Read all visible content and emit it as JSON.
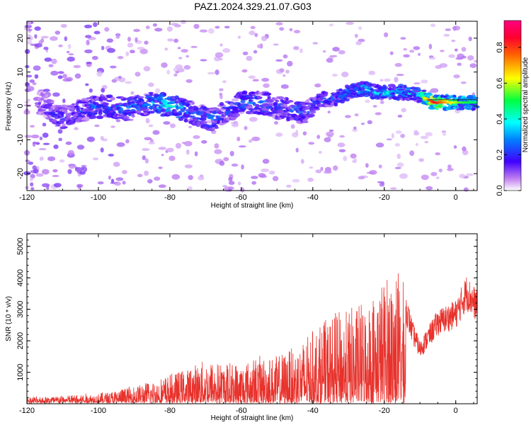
{
  "title": "PAZ1.2024.329.21.07.G03",
  "chart_data": [
    {
      "type": "heatmap",
      "xlabel": "Height of straight line (km)",
      "ylabel": "Frequency (Hz)",
      "xlim": [
        -120,
        6
      ],
      "ylim": [
        -25,
        25
      ],
      "xticks": [
        -120,
        -100,
        -80,
        -60,
        -40,
        -20,
        0
      ],
      "yticks": [
        -20,
        -10,
        0,
        10,
        20
      ],
      "colorbar": {
        "label": "Normalized spectral amplitude",
        "range": [
          0,
          0.95
        ],
        "ticks": [
          0.0,
          0.2,
          0.4,
          0.6,
          0.8
        ],
        "colormap": "rainbow (white-violet-blue-cyan-green-yellow-red-magenta)"
      },
      "ridge": {
        "x": [
          -116,
          -110,
          -104,
          -98,
          -92,
          -86,
          -80,
          -74,
          -68,
          -64,
          -60,
          -54,
          -48,
          -42,
          -38,
          -34,
          -30,
          -26,
          -22,
          -18,
          -14,
          -10,
          -6,
          -2,
          2,
          6
        ],
        "y": [
          1,
          -4,
          -1,
          0,
          -1,
          1,
          0,
          -2,
          -4,
          -2,
          1,
          1,
          -1,
          -2,
          2,
          2,
          4,
          5,
          4,
          4,
          4,
          3,
          1,
          1,
          1,
          1
        ],
        "amplitude": [
          0.15,
          0.25,
          0.25,
          0.3,
          0.3,
          0.35,
          0.45,
          0.3,
          0.3,
          0.25,
          0.3,
          0.3,
          0.25,
          0.3,
          0.3,
          0.3,
          0.35,
          0.4,
          0.4,
          0.42,
          0.38,
          0.5,
          0.9,
          0.7,
          0.55,
          0.5
        ]
      }
    },
    {
      "type": "line",
      "xlabel": "Height of straight line (km)",
      "ylabel": "SNR (10 * v/v)",
      "xlim": [
        -120,
        6
      ],
      "ylim": [
        0,
        5400
      ],
      "xticks": [
        -120,
        -100,
        -80,
        -60,
        -40,
        -20,
        0
      ],
      "yticks": [
        1000,
        2000,
        3000,
        4000,
        5000
      ],
      "color": "#e8322c",
      "envelope": {
        "x": [
          -120,
          -110,
          -100,
          -95,
          -90,
          -85,
          -80,
          -75,
          -70,
          -65,
          -60,
          -55,
          -50,
          -45,
          -40,
          -35,
          -30,
          -25,
          -20,
          -17,
          -15,
          -12,
          -10,
          -5,
          0,
          3,
          6
        ],
        "y": [
          200,
          230,
          300,
          400,
          550,
          700,
          900,
          1100,
          1400,
          1300,
          1300,
          1500,
          1500,
          1800,
          2300,
          2800,
          3000,
          3300,
          4000,
          4500,
          4000,
          2600,
          2000,
          3000,
          3300,
          4100,
          3600
        ]
      }
    }
  ]
}
